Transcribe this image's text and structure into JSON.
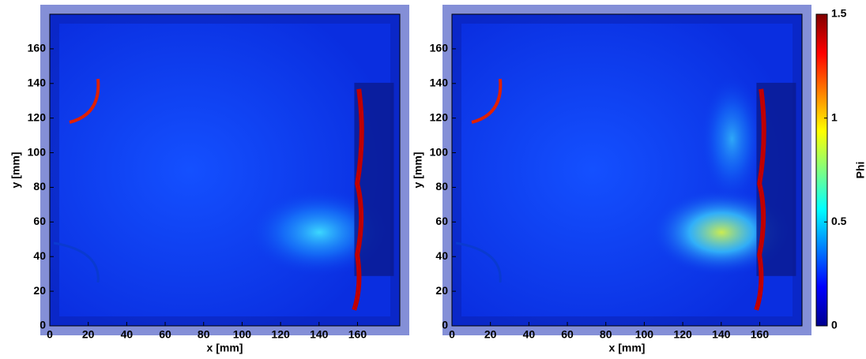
{
  "chart_data": [
    {
      "type": "heatmap",
      "xlabel": "x [mm]",
      "ylabel": "y [mm]",
      "xlim": [
        0,
        182
      ],
      "ylim": [
        0,
        180
      ],
      "xticks": [
        0,
        20,
        40,
        60,
        80,
        100,
        120,
        140,
        160
      ],
      "yticks": [
        0,
        20,
        40,
        60,
        80,
        100,
        120,
        140,
        160
      ]
    },
    {
      "type": "heatmap",
      "xlabel": "x [mm]",
      "ylabel": "y [mm]",
      "xlim": [
        0,
        182
      ],
      "ylim": [
        0,
        180
      ],
      "xticks": [
        0,
        20,
        40,
        60,
        80,
        100,
        120,
        140,
        160
      ],
      "yticks": [
        0,
        20,
        40,
        60,
        80,
        100,
        120,
        140,
        160
      ]
    }
  ],
  "colorbar": {
    "label": "Phi",
    "lim": [
      0,
      1.5
    ],
    "ticks": [
      0,
      0.5,
      1,
      1.5
    ]
  }
}
